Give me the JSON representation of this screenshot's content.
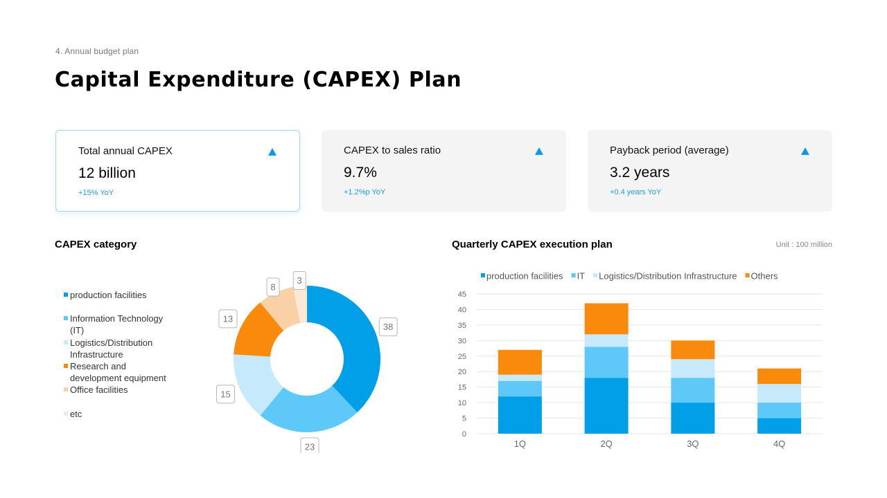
{
  "breadcrumb": "4. Annual budget plan",
  "title": "Capital Expenditure (CAPEX) Plan",
  "kpis": [
    {
      "label": "Total annual CAPEX",
      "value": "12 billion",
      "change": "+15% YoY",
      "arrow": "up-triangle-icon"
    },
    {
      "label": "CAPEX to sales ratio",
      "value": "9.7%",
      "change": "+1.2%p YoY",
      "arrow": "up-triangle-icon"
    },
    {
      "label": "Payback period (average)",
      "value": "3.2 years",
      "change": "+0.4 years YoY",
      "arrow": "up-triangle-icon"
    }
  ],
  "sections": {
    "category_title": "CAPEX category",
    "quarterly_title": "Quarterly CAPEX execution plan",
    "unit": "Unit : 100 million"
  },
  "colors": {
    "accent": "#0a9be8",
    "production": "#009fe8",
    "it": "#5ec8f9",
    "logistics": "#c6e9fb",
    "research": "#f98a0c",
    "office": "#fad1a6",
    "etc": "#fde8d8"
  },
  "chart_data": [
    {
      "type": "pie",
      "donut": true,
      "title": "CAPEX category",
      "legend": [
        "production facilities",
        "Information Technology (IT)",
        "Logistics/Distribution Infrastructure",
        "Research and development equipment",
        "Office facilities",
        "etc"
      ],
      "categories": [
        "production facilities",
        "Information Technology (IT)",
        "Logistics/Distribution Infrastructure",
        "Research and development equipment",
        "Office facilities",
        "etc"
      ],
      "values": [
        38,
        23,
        15,
        13,
        8,
        3
      ],
      "colors": [
        "#009fe8",
        "#5ec8f9",
        "#c6e9fb",
        "#f98a0c",
        "#fad1a6",
        "#fde8d8"
      ]
    },
    {
      "type": "bar",
      "stacked": true,
      "title": "Quarterly CAPEX execution plan",
      "categories": [
        "1Q",
        "2Q",
        "3Q",
        "4Q"
      ],
      "series": [
        {
          "name": "production facilities",
          "values": [
            12,
            18,
            10,
            5
          ],
          "color": "#009fe8"
        },
        {
          "name": "IT",
          "values": [
            5,
            10,
            8,
            5
          ],
          "color": "#5ec8f9"
        },
        {
          "name": "Logistics/Distribution Infrastructure",
          "values": [
            2,
            4,
            6,
            6
          ],
          "color": "#c6e9fb"
        },
        {
          "name": "Others",
          "values": [
            8,
            10,
            6,
            5
          ],
          "color": "#f98a0c"
        }
      ],
      "yticks": [
        0,
        5,
        10,
        15,
        20,
        25,
        30,
        35,
        40,
        45
      ],
      "ylim": [
        0,
        45
      ],
      "grid": true,
      "legend_position": "top"
    }
  ]
}
